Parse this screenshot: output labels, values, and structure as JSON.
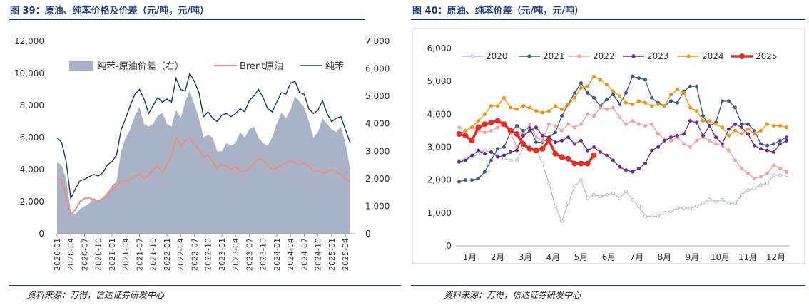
{
  "left": {
    "title": "图 39：原油、纯苯价格及价差（元/吨，元/吨）",
    "source": "资料来源：万得，信达证券研发中心"
  },
  "right": {
    "title": "图 40：原油、纯苯价差（元/吨，元/吨）",
    "source": "资料来源：万得，信达证券研发中心"
  },
  "chart_data": [
    {
      "type": "line",
      "y_left": {
        "min": 0,
        "max": 12000,
        "ticks": [
          "0",
          "2,000",
          "4,000",
          "6,000",
          "8,000",
          "10,000",
          "12,000"
        ]
      },
      "y_right": {
        "min": 0,
        "max": 7000,
        "ticks": [
          "0",
          "1,000",
          "2,000",
          "3,000",
          "4,000",
          "5,000",
          "6,000",
          "7,000"
        ]
      },
      "x_ticks": [
        "2020-01",
        "2020-04",
        "2020-07",
        "2020-10",
        "2021-01",
        "2021-04",
        "2021-07",
        "2021-10",
        "2022-01",
        "2022-04",
        "2022-07",
        "2022-10",
        "2023-01",
        "2023-04",
        "2023-07",
        "2023-10",
        "2024-01",
        "2024-04",
        "2024-07",
        "2024-10",
        "2025-01",
        "2025-04"
      ],
      "series": [
        {
          "name": "纯苯-原油价差（右）",
          "axis": "right",
          "kind": "area",
          "color": "#a9b3c6",
          "x": [
            "2020-01",
            "2020-02",
            "2020-03",
            "2020-04",
            "2020-05",
            "2020-06",
            "2020-07",
            "2020-08",
            "2020-09",
            "2020-10",
            "2020-11",
            "2020-12",
            "2021-01",
            "2021-02",
            "2021-03",
            "2021-04",
            "2021-05",
            "2021-06",
            "2021-07",
            "2021-08",
            "2021-09",
            "2021-10",
            "2021-11",
            "2021-12",
            "2022-01",
            "2022-02",
            "2022-03",
            "2022-04",
            "2022-05",
            "2022-06",
            "2022-07",
            "2022-08",
            "2022-09",
            "2022-10",
            "2022-11",
            "2022-12",
            "2023-01",
            "2023-02",
            "2023-03",
            "2023-04",
            "2023-05",
            "2023-06",
            "2023-07",
            "2023-08",
            "2023-09",
            "2023-10",
            "2023-11",
            "2023-12",
            "2024-01",
            "2024-02",
            "2024-03",
            "2024-04",
            "2024-05",
            "2024-06",
            "2024-07",
            "2024-08",
            "2024-09",
            "2024-10",
            "2024-11",
            "2024-12",
            "2025-01",
            "2025-02",
            "2025-03",
            "2025-04",
            "2025-05"
          ],
          "values": [
            2600,
            2500,
            2000,
            800,
            700,
            900,
            1000,
            1100,
            1300,
            1200,
            1250,
            1500,
            1750,
            1900,
            3000,
            3500,
            3800,
            4300,
            4600,
            4000,
            3900,
            4000,
            4300,
            4400,
            4000,
            3900,
            4500,
            4200,
            4800,
            5200,
            4700,
            4200,
            3500,
            3600,
            3500,
            3000,
            3000,
            3300,
            3200,
            3300,
            3700,
            3500,
            3800,
            3900,
            3500,
            3300,
            3200,
            3500,
            4000,
            4400,
            4200,
            4500,
            5000,
            4800,
            4600,
            4100,
            3500,
            3700,
            4200,
            4000,
            3800,
            3700,
            3900,
            3300,
            2400
          ]
        },
        {
          "name": "Brent原油",
          "axis": "left",
          "color": "#f08a85",
          "x": [
            "2020-01",
            "2020-02",
            "2020-03",
            "2020-04",
            "2020-05",
            "2020-06",
            "2020-07",
            "2020-08",
            "2020-09",
            "2020-10",
            "2020-11",
            "2020-12",
            "2021-01",
            "2021-02",
            "2021-03",
            "2021-04",
            "2021-05",
            "2021-06",
            "2021-07",
            "2021-08",
            "2021-09",
            "2021-10",
            "2021-11",
            "2021-12",
            "2022-01",
            "2022-02",
            "2022-03",
            "2022-04",
            "2022-05",
            "2022-06",
            "2022-07",
            "2022-08",
            "2022-09",
            "2022-10",
            "2022-11",
            "2022-12",
            "2023-01",
            "2023-02",
            "2023-03",
            "2023-04",
            "2023-05",
            "2023-06",
            "2023-07",
            "2023-08",
            "2023-09",
            "2023-10",
            "2023-11",
            "2023-12",
            "2024-01",
            "2024-02",
            "2024-03",
            "2024-04",
            "2024-05",
            "2024-06",
            "2024-07",
            "2024-08",
            "2024-09",
            "2024-10",
            "2024-11",
            "2024-12",
            "2025-01",
            "2025-02",
            "2025-03",
            "2025-04",
            "2025-05"
          ],
          "values": [
            3500,
            3300,
            2300,
            1200,
            1500,
            2000,
            2200,
            2250,
            2100,
            2050,
            2200,
            2500,
            2700,
            3000,
            3300,
            3200,
            3400,
            3600,
            3700,
            3450,
            3650,
            4000,
            4200,
            3800,
            4300,
            4800,
            6000,
            5500,
            5800,
            6000,
            5600,
            5200,
            4800,
            4900,
            4500,
            4100,
            4300,
            4200,
            4000,
            4200,
            3900,
            3850,
            4100,
            4400,
            4700,
            4600,
            4300,
            4000,
            4100,
            4300,
            4400,
            4600,
            4400,
            4300,
            4400,
            4200,
            3900,
            3950,
            3800,
            3850,
            4000,
            3900,
            3700,
            3400,
            3300
          ]
        },
        {
          "name": "纯苯",
          "axis": "left",
          "color": "#1c3766",
          "x": [
            "2020-01",
            "2020-02",
            "2020-03",
            "2020-04",
            "2020-05",
            "2020-06",
            "2020-07",
            "2020-08",
            "2020-09",
            "2020-10",
            "2020-11",
            "2020-12",
            "2021-01",
            "2021-02",
            "2021-03",
            "2021-04",
            "2021-05",
            "2021-06",
            "2021-07",
            "2021-08",
            "2021-09",
            "2021-10",
            "2021-11",
            "2021-12",
            "2022-01",
            "2022-02",
            "2022-03",
            "2022-04",
            "2022-05",
            "2022-06",
            "2022-07",
            "2022-08",
            "2022-09",
            "2022-10",
            "2022-11",
            "2022-12",
            "2023-01",
            "2023-02",
            "2023-03",
            "2023-04",
            "2023-05",
            "2023-06",
            "2023-07",
            "2023-08",
            "2023-09",
            "2023-10",
            "2023-11",
            "2023-12",
            "2024-01",
            "2024-02",
            "2024-03",
            "2024-04",
            "2024-05",
            "2024-06",
            "2024-07",
            "2024-08",
            "2024-09",
            "2024-10",
            "2024-11",
            "2024-12",
            "2025-01",
            "2025-02",
            "2025-03",
            "2025-04",
            "2025-05"
          ],
          "values": [
            6000,
            5700,
            4500,
            2200,
            2800,
            3300,
            3400,
            3550,
            3700,
            3600,
            3800,
            4300,
            4500,
            4900,
            6500,
            7200,
            8000,
            8700,
            9000,
            8400,
            7500,
            8000,
            8500,
            8200,
            8400,
            8200,
            9700,
            9000,
            8900,
            10000,
            9500,
            8800,
            7300,
            7600,
            7200,
            7000,
            7400,
            7500,
            7300,
            7500,
            7800,
            7600,
            8300,
            8600,
            9000,
            8500,
            7800,
            7600,
            8200,
            8800,
            8700,
            9400,
            9500,
            8800,
            8700,
            7800,
            7500,
            7700,
            8300,
            7500,
            7000,
            7200,
            7300,
            6500,
            5700
          ]
        }
      ]
    },
    {
      "type": "line",
      "y": {
        "min": 0,
        "max": 6000,
        "ticks": [
          "0",
          "1,000",
          "2,000",
          "3,000",
          "4,000",
          "5,000",
          "6,000"
        ]
      },
      "x_ticks": [
        "1月",
        "2月",
        "3月",
        "4月",
        "5月",
        "6月",
        "7月",
        "8月",
        "9月",
        "10月",
        "11月",
        "12月"
      ],
      "x_count": 52,
      "series": [
        {
          "name": "2020",
          "color": "#b6bccd",
          "marker": "circle-open",
          "values": [
            2600,
            2650,
            2700,
            2800,
            2900,
            2850,
            2750,
            2650,
            2600,
            2600,
            3000,
            3000,
            2950,
            2500,
            1900,
            1200,
            750,
            1300,
            1800,
            2000,
            1450,
            1550,
            1500,
            1550,
            1600,
            1450,
            1650,
            1400,
            1200,
            900,
            900,
            900,
            1000,
            1050,
            1150,
            1150,
            1150,
            1200,
            1300,
            1400,
            1350,
            1400,
            1300,
            1300,
            1550,
            1700,
            1750,
            1850,
            1900,
            2150,
            2150,
            2150
          ]
        },
        {
          "name": "2021",
          "color": "#405a82",
          "marker": "circle",
          "values": [
            1950,
            2000,
            2000,
            2050,
            2250,
            2600,
            2950,
            3000,
            3450,
            3650,
            3500,
            3600,
            3150,
            3150,
            3300,
            3450,
            3950,
            4300,
            4650,
            4950,
            4650,
            4500,
            4250,
            4450,
            4600,
            4300,
            4650,
            5150,
            5100,
            5050,
            4500,
            4350,
            4250,
            4400,
            4350,
            4700,
            4850,
            4850,
            3950,
            3650,
            3750,
            4400,
            4400,
            4200,
            3700,
            3700,
            3500,
            3100,
            3050,
            3100,
            3200,
            3300
          ]
        },
        {
          "name": "2022",
          "color": "#f2a0a5",
          "marker": "circle",
          "values": [
            3600,
            3500,
            3600,
            3500,
            3450,
            3500,
            3600,
            3700,
            3450,
            3000,
            3400,
            3700,
            3300,
            3200,
            3700,
            3650,
            3500,
            3700,
            3600,
            3700,
            4000,
            3950,
            4200,
            4150,
            4200,
            3900,
            3700,
            3800,
            3700,
            3650,
            3700,
            3400,
            3250,
            3200,
            3300,
            3100,
            3000,
            3200,
            3300,
            3200,
            3100,
            3050,
            2900,
            2600,
            2350,
            2200,
            2050,
            2100,
            2200,
            2450,
            2350,
            2250
          ]
        },
        {
          "name": "2023",
          "color": "#6a2d8c",
          "marker": "circle",
          "values": [
            2550,
            2600,
            2750,
            2900,
            2800,
            2850,
            2700,
            2750,
            2850,
            2900,
            3350,
            3500,
            3600,
            3350,
            3300,
            3150,
            3200,
            3300,
            3100,
            3200,
            2900,
            3000,
            2850,
            2750,
            2600,
            2400,
            2300,
            2250,
            2350,
            2500,
            2900,
            3000,
            3200,
            3300,
            3350,
            3400,
            3800,
            3750,
            3350,
            3650,
            3300,
            3100,
            3550,
            3700,
            3600,
            3400,
            3050,
            2950,
            2900,
            2850,
            3100,
            3200
          ]
        },
        {
          "name": "2024",
          "color": "#f0920e",
          "marker": "circle",
          "values": [
            3400,
            3500,
            3600,
            3800,
            4000,
            4250,
            4250,
            4500,
            4200,
            4150,
            4250,
            4200,
            4100,
            4050,
            4100,
            4250,
            4150,
            4300,
            4500,
            4800,
            4850,
            5150,
            5050,
            4900,
            4700,
            4550,
            4350,
            4300,
            4400,
            4350,
            4250,
            4300,
            4250,
            4600,
            4750,
            4650,
            4200,
            4100,
            3800,
            3800,
            3700,
            3600,
            3350,
            3500,
            3400,
            3550,
            3400,
            3500,
            3700,
            3650,
            3650,
            3600
          ]
        },
        {
          "name": "2025",
          "color": "#e82b27",
          "marker": "circle",
          "bold": true,
          "values": [
            3400,
            3350,
            3200,
            3600,
            3700,
            3750,
            3800,
            3700,
            3500,
            3400,
            3100,
            2950,
            2900,
            2950,
            3200,
            2800,
            2700,
            2650,
            2500,
            2500,
            2500,
            2750
          ]
        }
      ]
    }
  ]
}
